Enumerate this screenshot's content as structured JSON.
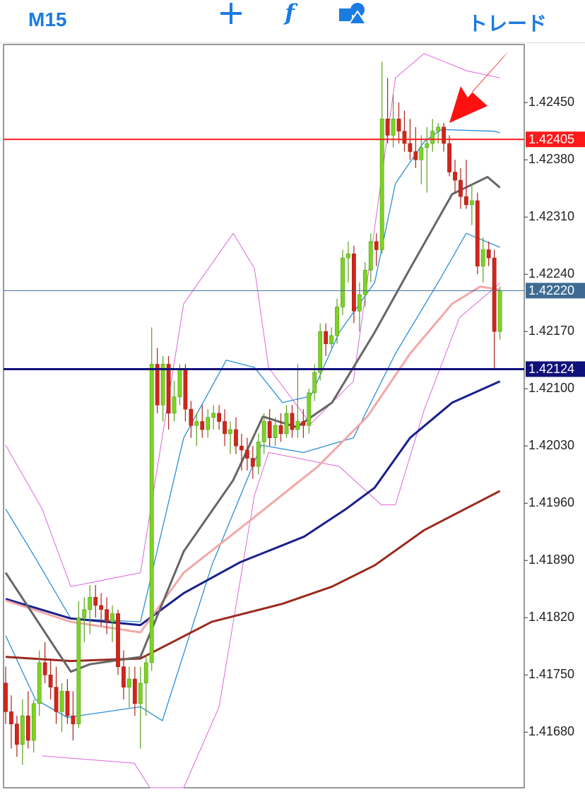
{
  "header": {
    "timeframe": "M15",
    "trade": "トレード"
  },
  "chart_data": {
    "type": "candlestick",
    "ylim": [
      1.41612,
      1.42521
    ],
    "yticks": [
      {
        "value": 1.4245,
        "label": "1.42450"
      },
      {
        "value": 1.4238,
        "label": "1.42380"
      },
      {
        "value": 1.4231,
        "label": "1.42310"
      },
      {
        "value": 1.4224,
        "label": "1.42240"
      },
      {
        "value": 1.4217,
        "label": "1.42170"
      },
      {
        "value": 1.421,
        "label": "1.42100"
      },
      {
        "value": 1.4203,
        "label": "1.42030"
      },
      {
        "value": 1.4196,
        "label": "1.41960"
      },
      {
        "value": 1.4189,
        "label": "1.41890"
      },
      {
        "value": 1.4182,
        "label": "1.41820"
      },
      {
        "value": 1.4175,
        "label": "1.41750"
      },
      {
        "value": 1.4168,
        "label": "1.41680"
      }
    ],
    "up_color": "#7ed321",
    "down_color": "#d0261c",
    "open": [
      1.4174,
      1.41705,
      1.4169,
      1.41665,
      1.417,
      1.4167,
      1.41715,
      1.41765,
      1.4175,
      1.41735,
      1.41705,
      1.4173,
      1.417,
      1.4169,
      1.4182,
      1.4183,
      1.41845,
      1.41835,
      1.4183,
      1.41815,
      1.41825,
      1.4176,
      1.41735,
      1.41745,
      1.41715,
      1.4174,
      1.41765,
      1.4213,
      1.4208,
      1.4213,
      1.4207,
      1.4209,
      1.42125,
      1.42075,
      1.42055,
      1.4206,
      1.4205,
      1.42065,
      1.4207,
      1.4206,
      1.42045,
      1.4205,
      1.4203,
      1.42025,
      1.42015,
      1.42005,
      1.42035,
      1.4206,
      1.4204,
      1.42055,
      1.42045,
      1.4207,
      1.4205,
      1.4206,
      1.42055,
      1.42095,
      1.4212,
      1.4217,
      1.42155,
      1.42165,
      1.422,
      1.4226,
      1.42265,
      1.42195,
      1.42215,
      1.42245,
      1.4228,
      1.4227,
      1.4243,
      1.4241,
      1.4243,
      1.42415,
      1.424,
      1.4239,
      1.4238,
      1.42395,
      1.424,
      1.42415,
      1.4242,
      1.424,
      1.42365,
      1.42355,
      1.42335,
      1.42325,
      1.4233,
      1.4225,
      1.4227,
      1.4226,
      1.4217
    ],
    "high": [
      1.4176,
      1.41725,
      1.417,
      1.4172,
      1.4173,
      1.4172,
      1.4178,
      1.4179,
      1.4177,
      1.4176,
      1.4174,
      1.41745,
      1.4173,
      1.4184,
      1.41845,
      1.4186,
      1.4186,
      1.4185,
      1.41845,
      1.41835,
      1.4183,
      1.4178,
      1.4176,
      1.4176,
      1.4176,
      1.41775,
      1.42175,
      1.4215,
      1.4214,
      1.4214,
      1.4211,
      1.4213,
      1.4213,
      1.42085,
      1.4207,
      1.4208,
      1.42075,
      1.4208,
      1.4208,
      1.42075,
      1.4206,
      1.42065,
      1.42045,
      1.4204,
      1.4203,
      1.42045,
      1.4207,
      1.42075,
      1.42065,
      1.4207,
      1.4208,
      1.4208,
      1.4213,
      1.42075,
      1.421,
      1.4213,
      1.4218,
      1.4218,
      1.42175,
      1.4221,
      1.4227,
      1.4228,
      1.42275,
      1.4223,
      1.42255,
      1.4229,
      1.4229,
      1.425,
      1.4248,
      1.4246,
      1.4245,
      1.4244,
      1.4243,
      1.4242,
      1.4241,
      1.4242,
      1.4243,
      1.42425,
      1.42425,
      1.4241,
      1.4238,
      1.4237,
      1.4238,
      1.4235,
      1.4234,
      1.42285,
      1.4228,
      1.4227,
      1.42225
    ],
    "low": [
      1.4169,
      1.4166,
      1.4165,
      1.4164,
      1.4166,
      1.41655,
      1.417,
      1.4174,
      1.4172,
      1.4169,
      1.4168,
      1.4169,
      1.4167,
      1.41685,
      1.4179,
      1.418,
      1.4182,
      1.4181,
      1.418,
      1.4179,
      1.4175,
      1.4172,
      1.4171,
      1.417,
      1.4166,
      1.417,
      1.41755,
      1.4207,
      1.4206,
      1.4205,
      1.4206,
      1.4208,
      1.4206,
      1.4204,
      1.4203,
      1.4204,
      1.4204,
      1.4205,
      1.4205,
      1.4203,
      1.4202,
      1.4202,
      1.42,
      1.42,
      1.4199,
      1.41995,
      1.4202,
      1.4203,
      1.4203,
      1.42035,
      1.4204,
      1.4204,
      1.4204,
      1.4204,
      1.42045,
      1.42085,
      1.4211,
      1.4214,
      1.4215,
      1.42155,
      1.4219,
      1.4223,
      1.4218,
      1.4217,
      1.422,
      1.4223,
      1.4225,
      1.42265,
      1.424,
      1.42395,
      1.424,
      1.4239,
      1.4238,
      1.4237,
      1.4235,
      1.4234,
      1.4239,
      1.424,
      1.4239,
      1.4236,
      1.4234,
      1.4232,
      1.4232,
      1.423,
      1.4224,
      1.4223,
      1.4225,
      1.42124,
      1.4216
    ],
    "close": [
      1.41705,
      1.4169,
      1.41665,
      1.417,
      1.4167,
      1.41715,
      1.41765,
      1.4175,
      1.41735,
      1.41705,
      1.4173,
      1.417,
      1.4169,
      1.4182,
      1.4183,
      1.41845,
      1.41835,
      1.4183,
      1.41815,
      1.41825,
      1.4176,
      1.41735,
      1.41745,
      1.41715,
      1.4174,
      1.41765,
      1.4213,
      1.4208,
      1.4213,
      1.4207,
      1.4209,
      1.42125,
      1.42075,
      1.42055,
      1.4206,
      1.4205,
      1.42065,
      1.4207,
      1.4206,
      1.42045,
      1.4205,
      1.4203,
      1.42025,
      1.42015,
      1.42005,
      1.42035,
      1.4206,
      1.4204,
      1.42055,
      1.42045,
      1.4207,
      1.4205,
      1.4206,
      1.42055,
      1.42095,
      1.4212,
      1.4217,
      1.42155,
      1.42165,
      1.422,
      1.4226,
      1.42265,
      1.42195,
      1.42215,
      1.42245,
      1.4228,
      1.4227,
      1.4243,
      1.4241,
      1.4243,
      1.42415,
      1.424,
      1.4239,
      1.4238,
      1.42395,
      1.424,
      1.42415,
      1.4242,
      1.424,
      1.42365,
      1.42355,
      1.42335,
      1.42325,
      1.4233,
      1.4225,
      1.4227,
      1.4226,
      1.4217,
      1.4222
    ],
    "lines": [
      {
        "color": "#dd66dd",
        "width": 1,
        "x": [
          0,
          6.5,
          11.6,
          24,
          31.7,
          40.5,
          44.3,
          46.8,
          54.3,
          61.9,
          69.4,
          74.5,
          82,
          88
        ],
        "values": [
          1.42031,
          1.41953,
          1.41858,
          1.41875,
          1.42204,
          1.4229,
          1.42247,
          1.42126,
          1.42057,
          1.42109,
          1.4248,
          1.4251,
          1.42489,
          1.4248
        ]
      },
      {
        "color": "#dd66dd",
        "width": 1,
        "x": [
          6.5,
          22.9,
          25.7,
          31.7,
          38,
          44.3,
          46.8,
          59.4,
          66.9,
          69.4,
          74.5,
          80.8,
          88
        ],
        "values": [
          1.41651,
          1.41642,
          1.41612,
          1.41612,
          1.41711,
          1.4197,
          1.42022,
          1.42005,
          1.41958,
          1.41958,
          1.42074,
          1.42187,
          1.42229
        ]
      },
      {
        "color": "#2a8fd8",
        "width": 1.3,
        "x": [
          0,
          5.3,
          11.6,
          24,
          31.7,
          39.3,
          44.3,
          49.3,
          54.3,
          59.4,
          65.7,
          69.4,
          74.5,
          77.6,
          87,
          88
        ],
        "values": [
          1.41953,
          1.41893,
          1.41819,
          1.41815,
          1.4204,
          1.42135,
          1.42126,
          1.42083,
          1.42091,
          1.42169,
          1.4223,
          1.42351,
          1.42402,
          1.42417,
          1.42415,
          1.42413
        ]
      },
      {
        "color": "#2a8fd8",
        "width": 1.3,
        "x": [
          0,
          5.3,
          11,
          24,
          27.9,
          36.7,
          45.5,
          53,
          61.9,
          69.4,
          77,
          82,
          88
        ],
        "values": [
          1.41798,
          1.4172,
          1.41698,
          1.41711,
          1.41694,
          1.41884,
          1.42031,
          1.42022,
          1.4204,
          1.42143,
          1.4223,
          1.4229,
          1.42273
        ]
      },
      {
        "color": "#9a2a1e",
        "width": 3,
        "x": [
          0,
          11.6,
          24,
          36.7,
          49.3,
          58.1,
          65.7,
          74.5,
          88
        ],
        "values": [
          1.41772,
          1.41767,
          1.4177,
          1.41815,
          1.41837,
          1.41858,
          1.41884,
          1.41927,
          1.41975
        ]
      },
      {
        "color": "#1a1f8c",
        "width": 3,
        "x": [
          0,
          11.6,
          24,
          31.7,
          41.8,
          53.1,
          60.6,
          65.7,
          72,
          79.5,
          88
        ],
        "values": [
          1.41843,
          1.41819,
          1.41811,
          1.4185,
          1.41888,
          1.41919,
          1.41953,
          1.41979,
          1.4204,
          1.42083,
          1.42109
        ]
      },
      {
        "color": "#f2a8a8",
        "width": 3,
        "x": [
          0,
          11.6,
          24,
          31.7,
          43,
          55.6,
          64.4,
          72,
          79.5,
          84.5,
          88
        ],
        "values": [
          1.41841,
          1.41815,
          1.41802,
          1.41875,
          1.41936,
          1.42005,
          1.42066,
          1.42143,
          1.42204,
          1.42225,
          1.42221
        ]
      },
      {
        "color": "#666666",
        "width": 3,
        "x": [
          0,
          11.6,
          15,
          24,
          31.7,
          40.5,
          45.8,
          51.8,
          58.1,
          65.7,
          72,
          79.5,
          85.8,
          88
        ],
        "values": [
          1.41875,
          1.41754,
          1.41763,
          1.41772,
          1.41901,
          1.41988,
          1.42066,
          1.42053,
          1.42083,
          1.42169,
          1.42247,
          1.42338,
          1.42359,
          1.42346
        ]
      }
    ],
    "levels": [
      {
        "value": 1.42405,
        "label": "1.42405",
        "color": "#ff1a1a",
        "width": 2
      },
      {
        "value": 1.4222,
        "label": "1.42220",
        "color": "#3d6b93",
        "width": 1
      },
      {
        "value": 1.42124,
        "label": "1.42124",
        "color": "#10107a",
        "width": 3
      }
    ]
  }
}
